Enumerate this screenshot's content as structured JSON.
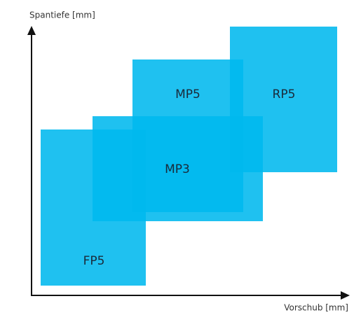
{
  "y_axis": {
    "label": "Spantiefe [mm]"
  },
  "x_axis": {
    "label": "Vorschub [mm]"
  },
  "regions": [
    {
      "label": "FP5"
    },
    {
      "label": "MP3"
    },
    {
      "label": "MP5"
    },
    {
      "label": "RP5"
    }
  ]
}
